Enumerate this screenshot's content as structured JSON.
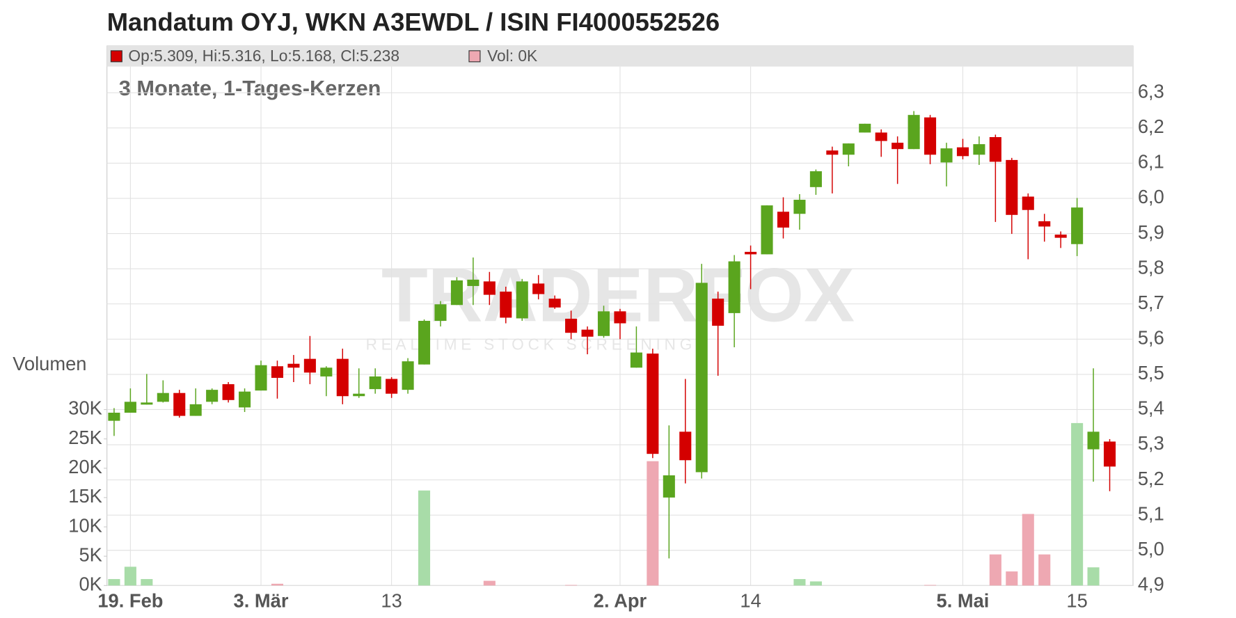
{
  "chart_data": {
    "type": "candlestick",
    "title": "Mandatum OYJ, WKN A3EWDL / ISIN FI4000552526",
    "subtitle": "3 Monate, 1-Tages-Kerzen",
    "legend_text": "Op:5.309, Hi:5.316, Lo:5.168, Cl:5.238",
    "volume_legend": "Vol: 0K",
    "y2_label": "Volumen",
    "watermark": "TRADERFOX",
    "watermark_sub": "REALTIME STOCK SCREENING",
    "categories": [
      null,
      "19. Feb",
      null,
      null,
      null,
      null,
      null,
      null,
      null,
      "3. Mär",
      null,
      null,
      null,
      null,
      null,
      null,
      null,
      "13",
      null,
      null,
      null,
      null,
      null,
      null,
      null,
      null,
      null,
      null,
      null,
      null,
      null,
      "2. Apr",
      null,
      null,
      null,
      null,
      null,
      null,
      null,
      "14",
      null,
      null,
      null,
      null,
      null,
      null,
      null,
      null,
      null,
      null,
      null,
      null,
      "5. Mai",
      null,
      null,
      null,
      null,
      null,
      null,
      "15",
      null,
      null
    ],
    "open": [
      5.368,
      5.391,
      5.414,
      5.422,
      5.447,
      5.382,
      5.422,
      5.472,
      5.406,
      5.454,
      5.523,
      5.53,
      5.544,
      5.494,
      5.544,
      5.438,
      5.458,
      5.487,
      5.456,
      5.528,
      5.652,
      5.697,
      5.751,
      5.764,
      5.735,
      5.659,
      5.758,
      5.715,
      5.658,
      5.627,
      5.609,
      5.679,
      5.519,
      5.559,
      5.15,
      5.337,
      5.222,
      5.715,
      5.674,
      5.848,
      5.841,
      5.962,
      5.956,
      6.032,
      6.136,
      6.124,
      6.187,
      6.187,
      6.158,
      6.14,
      6.23,
      6.102,
      6.145,
      6.124,
      6.174,
      6.109,
      6.005,
      5.935,
      5.897,
      5.87,
      5.287,
      5.309
    ],
    "high": [
      5.404,
      5.46,
      5.501,
      5.483,
      5.456,
      5.46,
      5.46,
      5.478,
      5.46,
      5.539,
      5.539,
      5.555,
      5.609,
      5.523,
      5.573,
      5.517,
      5.517,
      5.492,
      5.546,
      5.656,
      5.708,
      5.776,
      5.832,
      5.791,
      5.749,
      5.771,
      5.782,
      5.724,
      5.681,
      5.636,
      5.695,
      5.686,
      5.636,
      5.573,
      5.355,
      5.487,
      5.814,
      5.735,
      5.839,
      5.866,
      5.98,
      6.003,
      6.012,
      6.082,
      6.147,
      6.156,
      6.212,
      6.196,
      6.176,
      6.248,
      6.237,
      6.158,
      6.169,
      6.176,
      6.181,
      6.115,
      6.014,
      5.956,
      5.906,
      6.001,
      5.517,
      5.316
    ],
    "low": [
      5.325,
      5.391,
      5.414,
      5.42,
      5.377,
      5.382,
      5.415,
      5.42,
      5.393,
      5.454,
      5.431,
      5.478,
      5.472,
      5.438,
      5.415,
      5.433,
      5.445,
      5.433,
      5.445,
      5.528,
      5.636,
      5.697,
      5.697,
      5.697,
      5.645,
      5.652,
      5.713,
      5.686,
      5.6,
      5.557,
      5.604,
      5.6,
      5.519,
      5.262,
      4.977,
      5.19,
      5.204,
      5.496,
      5.577,
      5.742,
      5.841,
      5.886,
      5.911,
      6.01,
      6.014,
      6.091,
      6.187,
      6.118,
      6.041,
      6.14,
      6.097,
      6.034,
      6.111,
      6.095,
      5.933,
      5.899,
      5.827,
      5.877,
      5.859,
      5.836,
      5.195,
      5.168
    ],
    "close": [
      5.391,
      5.422,
      5.42,
      5.447,
      5.382,
      5.415,
      5.456,
      5.427,
      5.451,
      5.526,
      5.49,
      5.519,
      5.505,
      5.519,
      5.438,
      5.445,
      5.494,
      5.445,
      5.537,
      5.652,
      5.699,
      5.767,
      5.769,
      5.726,
      5.661,
      5.764,
      5.728,
      5.69,
      5.618,
      5.607,
      5.679,
      5.645,
      5.562,
      5.274,
      5.213,
      5.256,
      5.76,
      5.638,
      5.821,
      5.841,
      5.98,
      5.917,
      5.996,
      6.077,
      6.124,
      6.156,
      6.212,
      6.163,
      6.14,
      6.237,
      6.124,
      6.142,
      6.12,
      6.154,
      6.104,
      5.953,
      5.967,
      5.92,
      5.888,
      5.974,
      5.337,
      5.238
    ],
    "volume": [
      1.1,
      3.2,
      1.1,
      0,
      0,
      0,
      0,
      0,
      0,
      0,
      0.3,
      0,
      0,
      0,
      0,
      0,
      0,
      0,
      0,
      16.2,
      0,
      0,
      0,
      0.8,
      0,
      0,
      0,
      0,
      0.1,
      0,
      0,
      0,
      0,
      21.2,
      0,
      0,
      0,
      0,
      0,
      0,
      0,
      0,
      1.1,
      0.7,
      0,
      0,
      0,
      0,
      0,
      0,
      0.1,
      0,
      0,
      0,
      5.3,
      2.4,
      12.2,
      5.3,
      0,
      27.7,
      3.1,
      0
    ],
    "up_color": "#5aa51e",
    "down_color": "#d40000",
    "up_volume_color": "#a8dca8",
    "down_volume_color": "#eea8b2",
    "ylim": [
      4.9,
      6.433
    ],
    "yticks": [
      {
        "value": 4.9,
        "label": "4,9"
      },
      {
        "value": 5.0,
        "label": "5,0"
      },
      {
        "value": 5.1,
        "label": "5,1"
      },
      {
        "value": 5.2,
        "label": "5,2"
      },
      {
        "value": 5.3,
        "label": "5,3"
      },
      {
        "value": 5.4,
        "label": "5,4"
      },
      {
        "value": 5.5,
        "label": "5,5"
      },
      {
        "value": 5.6,
        "label": "5,6"
      },
      {
        "value": 5.7,
        "label": "5,7"
      },
      {
        "value": 5.8,
        "label": "5,8"
      },
      {
        "value": 5.9,
        "label": "5,9"
      },
      {
        "value": 6.0,
        "label": "6,0"
      },
      {
        "value": 6.1,
        "label": "6,1"
      },
      {
        "value": 6.2,
        "label": "6,2"
      },
      {
        "value": 6.3,
        "label": "6,3"
      }
    ],
    "y2lim": [
      0,
      92
    ],
    "y2ticks": [
      {
        "value": 0,
        "label": "0K"
      },
      {
        "value": 5,
        "label": "5K"
      },
      {
        "value": 10,
        "label": "10K"
      },
      {
        "value": 15,
        "label": "15K"
      },
      {
        "value": 20,
        "label": "20K"
      },
      {
        "value": 25,
        "label": "25K"
      },
      {
        "value": 30,
        "label": "30K"
      }
    ],
    "grid": true
  }
}
